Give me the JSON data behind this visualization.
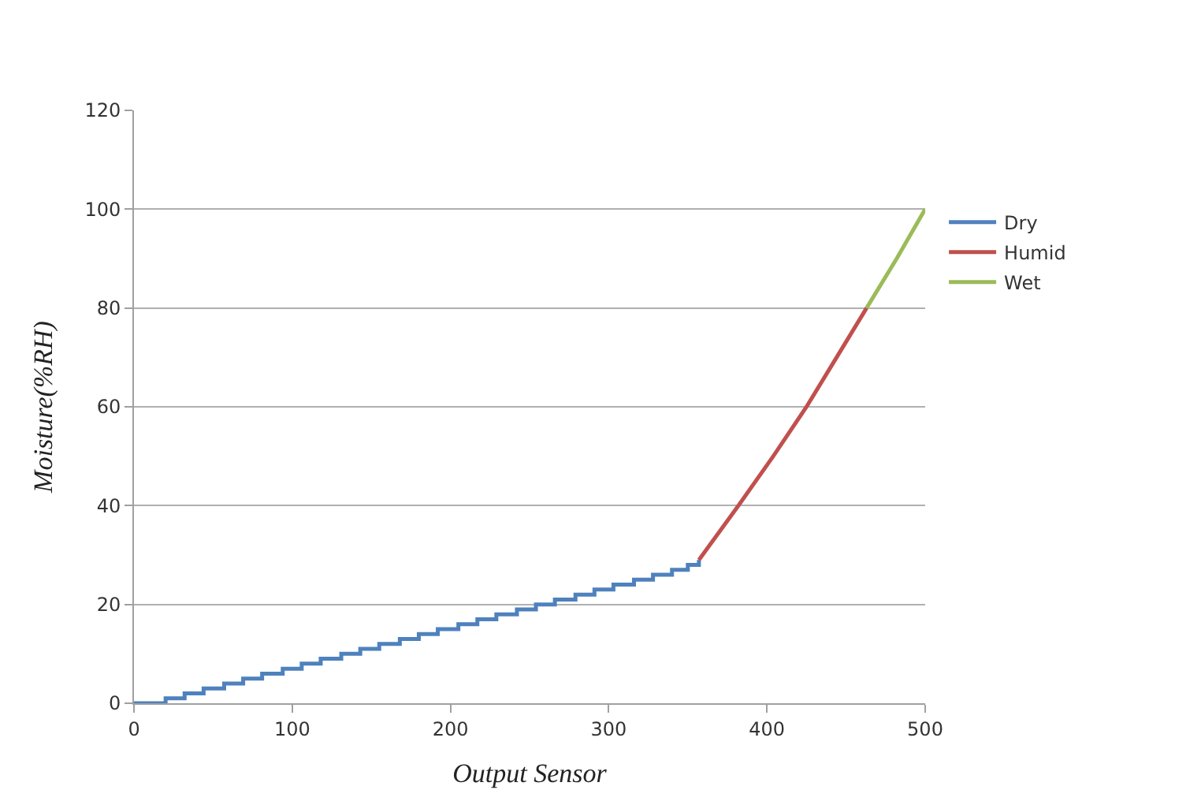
{
  "chart_data": {
    "type": "line",
    "xlabel": "Output Sensor",
    "ylabel": "Moisture(%RH)",
    "xlim": [
      0,
      500
    ],
    "xticks": [
      0,
      100,
      200,
      300,
      400,
      500
    ],
    "ylim": [
      0,
      120
    ],
    "yticks": [
      0,
      20,
      40,
      60,
      80,
      100,
      120
    ],
    "grid": "y",
    "legend": "right",
    "marker": "none",
    "line_style": "solid",
    "series": [
      {
        "name": "Dry",
        "type": "step",
        "color": "#4f81bd",
        "x": [
          0,
          20,
          32,
          44,
          57,
          69,
          81,
          94,
          106,
          118,
          131,
          143,
          155,
          168,
          180,
          192,
          205,
          217,
          229,
          242,
          254,
          266,
          279,
          291,
          303,
          316,
          328,
          340,
          350,
          357
        ],
        "values": [
          0,
          1,
          2,
          3,
          4,
          5,
          6,
          7,
          8,
          9,
          10,
          11,
          12,
          13,
          14,
          15,
          16,
          17,
          18,
          19,
          20,
          21,
          22,
          23,
          24,
          25,
          26,
          27,
          28,
          29
        ]
      },
      {
        "name": "Humid",
        "color": "#c0504d",
        "x": [
          357,
          382,
          404,
          425,
          444,
          463
        ],
        "values": [
          29,
          40,
          50,
          60,
          70,
          80
        ]
      },
      {
        "name": "Wet",
        "color": "#9bbb59",
        "x": [
          463,
          482,
          500
        ],
        "values": [
          80,
          90,
          100
        ]
      }
    ]
  }
}
